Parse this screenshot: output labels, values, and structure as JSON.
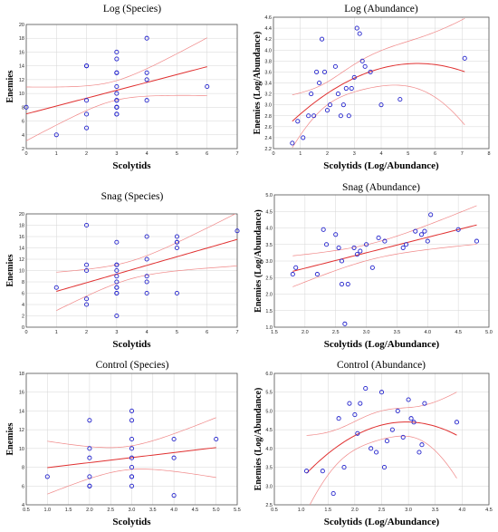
{
  "colors": {
    "points": "#2222cc",
    "fit": "#e03030",
    "ci": "#f08888",
    "grid": "#d6d6d6"
  },
  "chart_data": [
    {
      "type": "scatter",
      "title": "Log (Species)",
      "xlabel": "Scolytids",
      "ylabel": "Enemies",
      "xlim": [
        0,
        7
      ],
      "ylim": [
        2,
        20
      ],
      "xticks": [
        0,
        1,
        2,
        3,
        4,
        5,
        6,
        7
      ],
      "yticks": [
        2,
        4,
        6,
        8,
        10,
        12,
        14,
        16,
        18,
        20
      ],
      "fit": "linear",
      "ci_band": true,
      "grid": true,
      "x": [
        0,
        1,
        2,
        2,
        2,
        2,
        2,
        3,
        3,
        3,
        3,
        3,
        3,
        3,
        3,
        3,
        3,
        3,
        3,
        3,
        4,
        4,
        4,
        4,
        6
      ],
      "y": [
        8,
        4,
        5,
        7,
        9,
        14,
        14,
        7,
        7,
        8,
        8,
        9,
        10,
        11,
        13,
        13,
        15,
        16,
        9,
        8,
        9,
        12,
        13,
        18,
        11
      ]
    },
    {
      "type": "scatter",
      "title": "Log (Abundance)",
      "xlabel": "Scolytids (Log/Abundance)",
      "ylabel": "Enemies (Log/Abundance)",
      "xlim": [
        0,
        8
      ],
      "ylim": [
        2.2,
        4.6
      ],
      "xticks": [
        0,
        1,
        2,
        3,
        4,
        5,
        6,
        7,
        8
      ],
      "yticks": [
        2.2,
        2.4,
        2.6,
        2.8,
        3.0,
        3.2,
        3.4,
        3.6,
        3.8,
        4.0,
        4.2,
        4.4,
        4.6
      ],
      "fit": "quadratic",
      "ci_band": true,
      "grid": true,
      "x": [
        0.7,
        0.9,
        1.1,
        1.3,
        1.4,
        1.5,
        1.6,
        1.7,
        1.8,
        1.9,
        2.0,
        2.1,
        2.3,
        2.4,
        2.5,
        2.6,
        2.7,
        2.8,
        2.9,
        3.0,
        3.1,
        3.2,
        3.3,
        3.4,
        3.6,
        4.0,
        4.7,
        7.1
      ],
      "y": [
        2.3,
        2.7,
        2.4,
        2.8,
        3.2,
        2.8,
        3.6,
        3.4,
        4.2,
        3.6,
        2.9,
        3.0,
        3.7,
        3.2,
        2.8,
        3.0,
        3.3,
        2.8,
        3.3,
        3.5,
        4.4,
        4.3,
        3.8,
        3.7,
        3.6,
        3.0,
        3.1,
        3.85
      ]
    },
    {
      "type": "scatter",
      "title": "Snag (Species)",
      "xlabel": "Scolytids",
      "ylabel": "Enemies",
      "xlim": [
        0,
        7
      ],
      "ylim": [
        0,
        20
      ],
      "xticks": [
        0,
        1,
        2,
        3,
        4,
        5,
        6,
        7
      ],
      "yticks": [
        0,
        2,
        4,
        6,
        8,
        10,
        12,
        14,
        16,
        18,
        20
      ],
      "fit": "linear",
      "ci_band": true,
      "grid": true,
      "x": [
        1,
        2,
        2,
        2,
        2,
        2,
        3,
        3,
        3,
        3,
        3,
        3,
        3,
        3,
        3,
        3,
        3,
        4,
        4,
        4,
        4,
        4,
        5,
        5,
        5,
        5,
        5,
        7
      ],
      "y": [
        7,
        4,
        5,
        10,
        11,
        18,
        2,
        6,
        7,
        7,
        8,
        9,
        10,
        11,
        11,
        15,
        6,
        6,
        8,
        9,
        12,
        16,
        6,
        14,
        15,
        15,
        16,
        17
      ]
    },
    {
      "type": "scatter",
      "title": "Snag (Abundance)",
      "xlabel": "Scolytids (Log/Abundance)",
      "ylabel": "Enemies (Log/Abundance)",
      "xlim": [
        1.5,
        5.0
      ],
      "ylim": [
        1.0,
        5.0
      ],
      "xticks": [
        1.5,
        2.0,
        2.5,
        3.0,
        3.5,
        4.0,
        4.5,
        5.0
      ],
      "yticks": [
        1.0,
        1.5,
        2.0,
        2.5,
        3.0,
        3.5,
        4.0,
        4.5,
        5.0
      ],
      "fit": "linear",
      "ci_band": true,
      "grid": true,
      "x": [
        1.8,
        1.85,
        2.2,
        2.3,
        2.35,
        2.5,
        2.55,
        2.6,
        2.6,
        2.65,
        2.7,
        2.8,
        2.85,
        2.9,
        3.0,
        3.1,
        3.2,
        3.3,
        3.6,
        3.65,
        3.8,
        3.9,
        3.95,
        4.0,
        4.05,
        4.5,
        4.8
      ],
      "y": [
        2.6,
        2.8,
        2.6,
        3.95,
        3.5,
        3.8,
        3.4,
        3.0,
        2.3,
        1.1,
        2.3,
        3.4,
        3.2,
        3.3,
        3.5,
        2.8,
        3.7,
        3.6,
        3.4,
        3.5,
        3.9,
        3.8,
        3.9,
        3.6,
        4.4,
        3.95,
        3.6
      ]
    },
    {
      "type": "scatter",
      "title": "Control (Species)",
      "xlabel": "Scolytids",
      "ylabel": "Enemies",
      "xlim": [
        0.5,
        5.5
      ],
      "ylim": [
        4,
        18
      ],
      "xticks": [
        0.5,
        1.0,
        1.5,
        2.0,
        2.5,
        3.0,
        3.5,
        4.0,
        4.5,
        5.0,
        5.5
      ],
      "yticks": [
        4,
        6,
        8,
        10,
        12,
        14,
        16,
        18
      ],
      "fit": "linear",
      "ci_band": true,
      "grid": true,
      "x": [
        1,
        2,
        2,
        2,
        2,
        2,
        2,
        3,
        3,
        3,
        3,
        3,
        3,
        3,
        3,
        3,
        4,
        4,
        4,
        5
      ],
      "y": [
        7,
        6,
        7,
        9,
        10,
        13,
        6,
        6,
        7,
        8,
        9,
        10,
        11,
        13,
        14,
        7,
        5,
        9,
        11,
        11
      ]
    },
    {
      "type": "scatter",
      "title": "Control (Abundance)",
      "xlabel": "Scolytids (Log/Abundance)",
      "ylabel": "Enemies (Log/Abundance)",
      "xlim": [
        0.5,
        4.5
      ],
      "ylim": [
        2.5,
        6.0
      ],
      "xticks": [
        0.5,
        1.0,
        1.5,
        2.0,
        2.5,
        3.0,
        3.5,
        4.0,
        4.5
      ],
      "yticks": [
        2.5,
        3.0,
        3.5,
        4.0,
        4.5,
        5.0,
        5.5,
        6.0
      ],
      "fit": "quadratic",
      "ci_band": true,
      "grid": true,
      "x": [
        1.1,
        1.4,
        1.6,
        1.7,
        1.8,
        1.9,
        2.0,
        2.05,
        2.1,
        2.2,
        2.3,
        2.4,
        2.5,
        2.55,
        2.6,
        2.7,
        2.8,
        2.9,
        3.0,
        3.05,
        3.1,
        3.2,
        3.25,
        3.3,
        3.9
      ],
      "y": [
        3.4,
        3.4,
        2.8,
        4.8,
        3.5,
        5.2,
        4.9,
        4.4,
        5.2,
        5.6,
        4.0,
        3.9,
        5.5,
        3.5,
        4.2,
        4.5,
        5.0,
        4.3,
        5.3,
        4.8,
        4.7,
        3.9,
        4.1,
        5.2,
        4.7
      ]
    }
  ]
}
